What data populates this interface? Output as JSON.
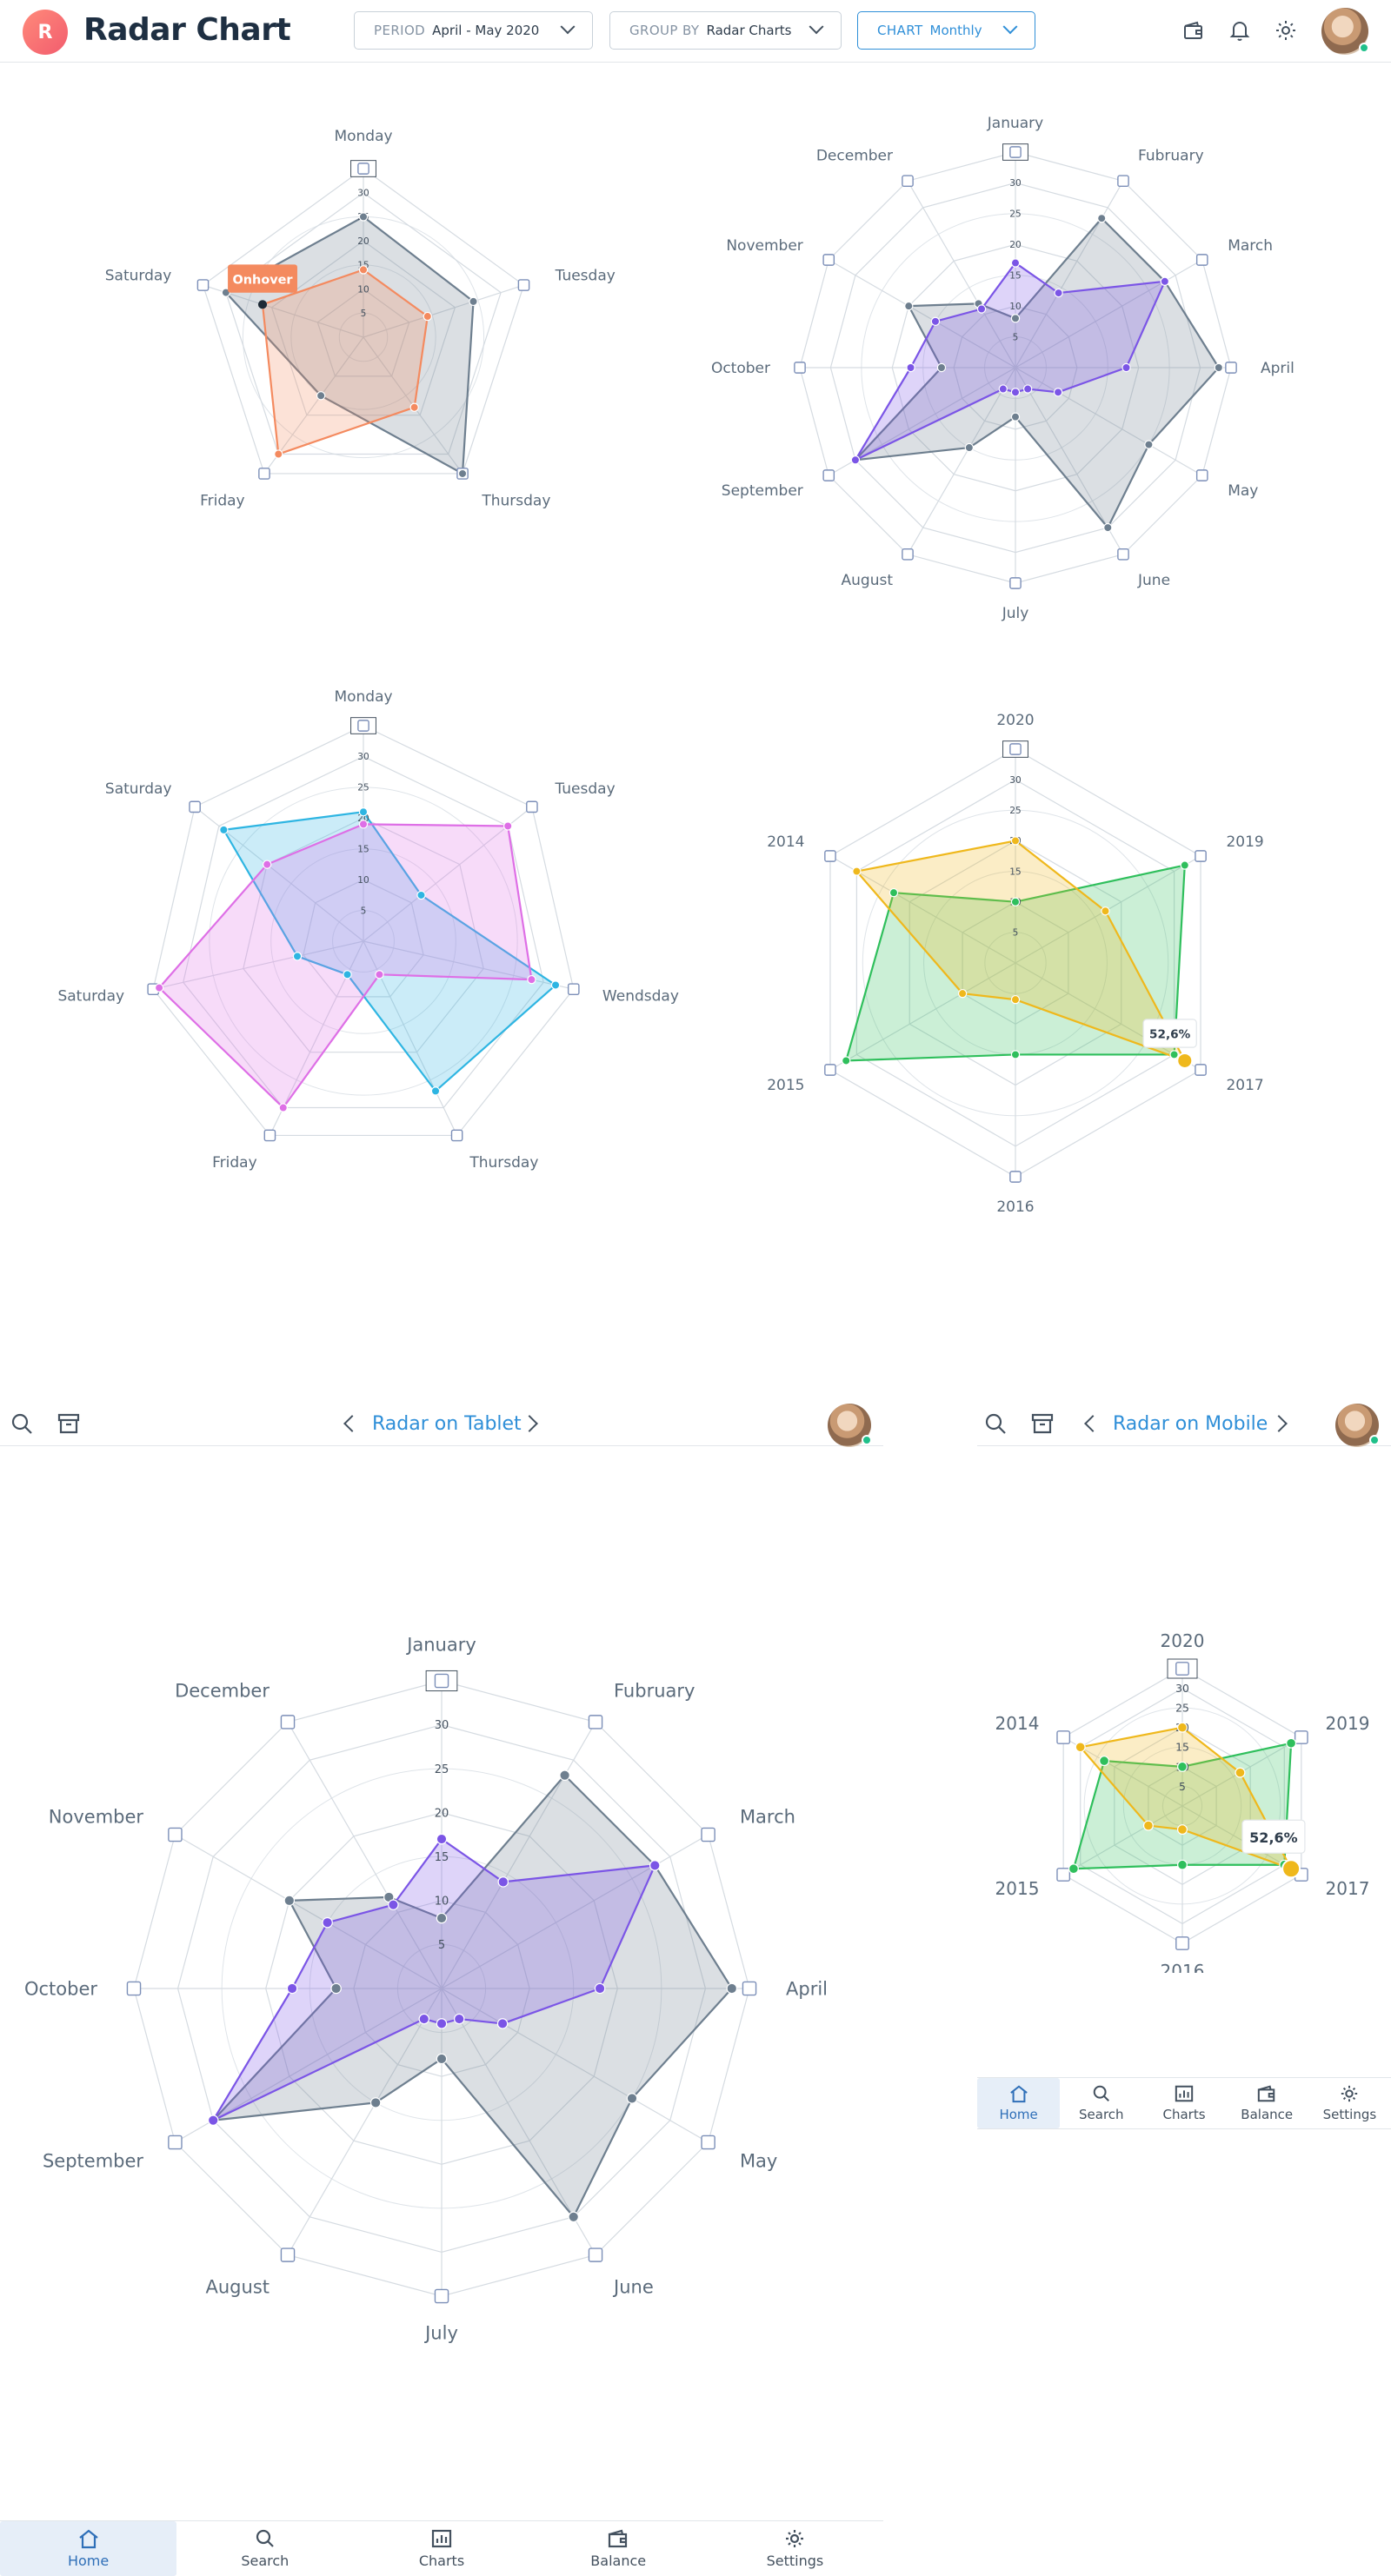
{
  "header": {
    "logo_letter": "R",
    "title": "Radar Chart",
    "filters": [
      {
        "key": "PERIOD",
        "value": "April - May 2020"
      },
      {
        "key": "GROUP BY",
        "value": "Radar Charts"
      },
      {
        "key": "CHART",
        "value": "Monthly"
      }
    ],
    "icons": [
      "wallet-icon",
      "bell-icon",
      "gear-icon"
    ]
  },
  "tablet": {
    "title": "Radar on Tablet"
  },
  "mobile": {
    "title": "Radar on Mobile"
  },
  "tabbar": {
    "items": [
      {
        "label": "Home",
        "icon": "home-icon",
        "active": true
      },
      {
        "label": "Search",
        "icon": "search-icon",
        "active": false
      },
      {
        "label": "Charts",
        "icon": "chart-icon",
        "active": false
      },
      {
        "label": "Balance",
        "icon": "wallet-icon",
        "active": false
      },
      {
        "label": "Settings",
        "icon": "gear-icon",
        "active": false
      }
    ]
  },
  "colors": {
    "gray_series": "#6e7f8f",
    "orange_series": "#f48a5f",
    "purple_series": "#7b55e6",
    "cyan_series": "#2eb5e2",
    "pink_series": "#de6fe6",
    "green_series": "#2fbf5c",
    "yellow_series": "#efb81c",
    "accent_blue": "#2f8fd8",
    "tooltip_orange": "#f48a5f"
  },
  "chart_data": [
    {
      "id": "weekly-5",
      "type": "radar",
      "categories": [
        "Monday",
        "Tuesday",
        "Thursday",
        "Friday",
        "Saturday"
      ],
      "rlim": [
        0,
        35
      ],
      "ticks": [
        "5",
        "10",
        "15",
        "20",
        "25",
        "30",
        "35"
      ],
      "grid": true,
      "series": [
        {
          "color": "#6e7f8f",
          "values": [
            25,
            24,
            35,
            15,
            30
          ]
        },
        {
          "color": "#f48a5f",
          "values": [
            14,
            14,
            18,
            30,
            22
          ]
        }
      ],
      "tooltip": {
        "text": "Onhover",
        "series": 1,
        "point": 4
      }
    },
    {
      "id": "monthly-12",
      "type": "radar",
      "categories": [
        "January",
        "Fubruary",
        "March",
        "April",
        "May",
        "June",
        "July",
        "August",
        "September",
        "October",
        "November",
        "December"
      ],
      "rlim": [
        0,
        35
      ],
      "ticks": [
        "5",
        "10",
        "15",
        "20",
        "25",
        "30",
        "35"
      ],
      "grid": true,
      "series": [
        {
          "color": "#6e7f8f",
          "values": [
            8,
            28,
            28,
            33,
            25,
            30,
            8,
            15,
            30,
            12,
            20,
            12
          ]
        },
        {
          "color": "#7b55e6",
          "values": [
            17,
            14,
            28,
            18,
            8,
            4,
            4,
            4,
            30,
            17,
            15,
            11
          ]
        }
      ]
    },
    {
      "id": "weekly-7",
      "type": "radar",
      "categories": [
        "Monday",
        "Tuesday",
        "Wendsday",
        "Thursday",
        "Friday",
        "Saturday",
        "Saturday"
      ],
      "rlim": [
        0,
        35
      ],
      "ticks": [
        "5",
        "10",
        "15",
        "20",
        "25",
        "30",
        "35"
      ],
      "grid": true,
      "series": [
        {
          "color": "#2eb5e2",
          "values": [
            21,
            12,
            32,
            27,
            6,
            11,
            29
          ]
        },
        {
          "color": "#de6fe6",
          "values": [
            19,
            30,
            28,
            6,
            30,
            34,
            20
          ]
        }
      ]
    },
    {
      "id": "yearly-6",
      "type": "radar",
      "categories": [
        "2020",
        "2019",
        "2017",
        "2016",
        "2015",
        "2014"
      ],
      "rlim": [
        0,
        35
      ],
      "ticks": [
        "5",
        "10",
        "15",
        "20",
        "25",
        "30",
        "35"
      ],
      "grid": true,
      "series": [
        {
          "color": "#2fbf5c",
          "values": [
            10,
            32,
            30,
            15,
            32,
            23
          ]
        },
        {
          "color": "#efb81c",
          "values": [
            20,
            17,
            32,
            6,
            10,
            30
          ]
        }
      ],
      "tooltip": {
        "text": "52,6%",
        "series": 1,
        "point": 2
      }
    }
  ]
}
